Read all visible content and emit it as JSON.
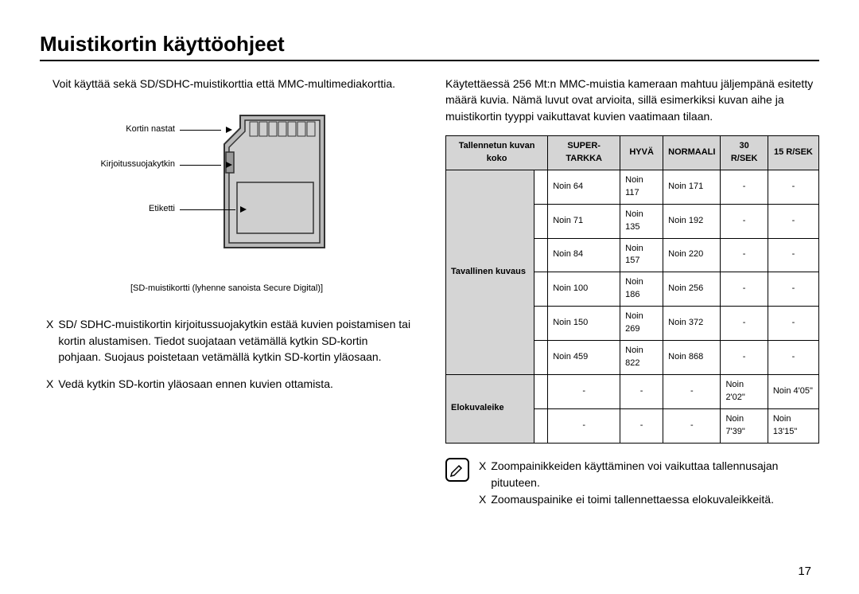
{
  "title": "Muistikortin käyttöohjeet",
  "left": {
    "intro": "Voit käyttää sekä SD/SDHC-muistikorttia että MMC-multimediakorttia.",
    "labels": {
      "pins": "Kortin nastat",
      "wp": "Kirjoitussuojakytkin",
      "label": "Etiketti"
    },
    "sd_caption": "[SD-muistikortti (lyhenne sanoista Secure Digital)]",
    "bullets": [
      "SD/ SDHC-muistikortin kirjoitussuojakytkin estää kuvien poistamisen tai kortin alustamisen. Tiedot suojataan vetämällä kytkin SD-kortin pohjaan. Suojaus poistetaan vetämällä kytkin SD-kortin yläosaan.",
      "Vedä kytkin SD-kortin yläosaan ennen kuvien ottamista."
    ]
  },
  "right": {
    "intro": "Käytettäessä 256 Mt:n MMC-muistia kameraan mahtuu jäljempänä esitetty määrä kuvia.  Nämä luvut ovat arvioita, sillä esimerkiksi kuvan aihe ja muistikortin tyyppi vaikuttavat kuvien vaatimaan tilaan.",
    "table": {
      "headers": [
        "Tallennetun kuvan koko",
        "SUPER-TARKKA",
        "HYVÄ",
        "NORMAALI",
        "30 R/SEK",
        "15 R/SEK"
      ],
      "group1_label": "Tavallinen kuvaus",
      "group1_rows": [
        [
          "Noin 64",
          "Noin 117",
          "Noin 171",
          "-",
          "-"
        ],
        [
          "Noin 71",
          "Noin 135",
          "Noin 192",
          "-",
          "-"
        ],
        [
          "Noin 84",
          "Noin 157",
          "Noin 220",
          "-",
          "-"
        ],
        [
          "Noin 100",
          "Noin 186",
          "Noin 256",
          "-",
          "-"
        ],
        [
          "Noin 150",
          "Noin 269",
          "Noin 372",
          "-",
          "-"
        ],
        [
          "Noin 459",
          "Noin 822",
          "Noin 868",
          "-",
          "-"
        ]
      ],
      "group2_label": "Elokuvaleike",
      "group2_rows": [
        [
          "-",
          "-",
          "-",
          "Noin 2'02\"",
          "Noin 4'05\""
        ],
        [
          "-",
          "-",
          "-",
          "Noin 7'39\"",
          "Noin 13'15\""
        ]
      ]
    },
    "notes": [
      "Zoompainikkeiden käyttäminen voi vaikuttaa tallennusajan pituuteen.",
      "Zoomauspainike ei toimi tallennettaessa elokuvaleikkeitä."
    ]
  },
  "page_number": "17",
  "colors": {
    "header_bg": "#d5d5d5",
    "card_border": "#333333"
  }
}
